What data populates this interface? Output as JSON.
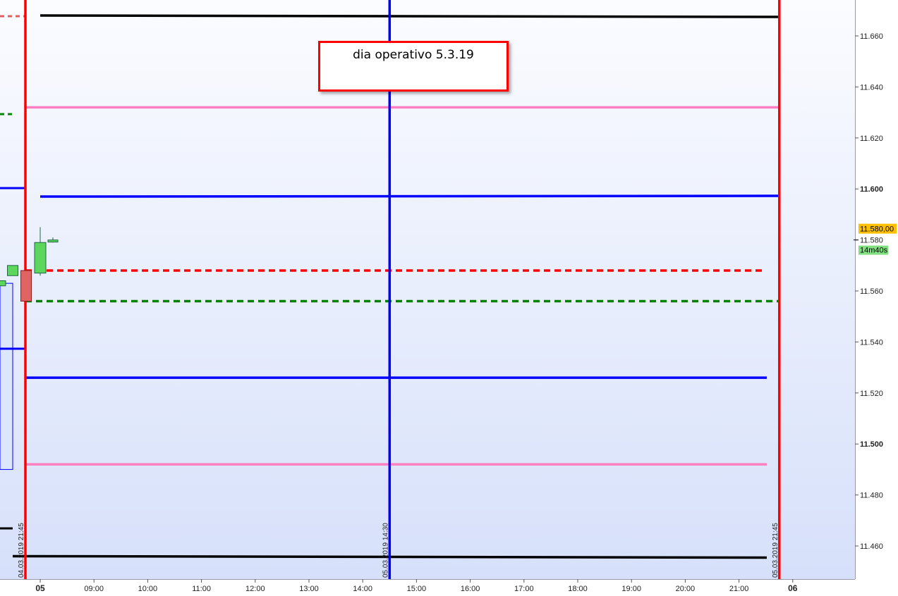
{
  "chart_data": {
    "type": "candlestick",
    "ylim": [
      11.445,
      11.675
    ],
    "y_ticks": [
      "11.660",
      "11.640",
      "11.620",
      "11.600",
      "11.580",
      "11.560",
      "11.540",
      "11.520",
      "11.500",
      "11.480",
      "11.460"
    ],
    "y_tick_values": [
      11.66,
      11.64,
      11.62,
      11.6,
      11.58,
      11.56,
      11.54,
      11.52,
      11.5,
      11.48,
      11.46
    ],
    "bold_ticks": [
      "11.600",
      "11.500"
    ],
    "x_ticks": [
      "05",
      "09:00",
      "10:00",
      "11:00",
      "12:00",
      "13:00",
      "14:00",
      "15:00",
      "16:00",
      "17:00",
      "18:00",
      "19:00",
      "20:00",
      "21:00",
      "06"
    ],
    "x_tick_hours": [
      8,
      9,
      10,
      11,
      12,
      13,
      14,
      15,
      16,
      17,
      18,
      19,
      20,
      21,
      22
    ],
    "current_price": "11.580,00",
    "countdown": "14m40s",
    "annotation": "dia operativo 5.3.19",
    "horizontal_levels": [
      {
        "price": 11.668,
        "color": "#000000",
        "style": "solid"
      },
      {
        "price": 11.632,
        "color": "#ff80c0",
        "style": "solid"
      },
      {
        "price": 11.597,
        "color": "#0000ff",
        "style": "solid"
      },
      {
        "price": 11.568,
        "color": "#ff0000",
        "style": "dashed"
      },
      {
        "price": 11.556,
        "color": "#008000",
        "style": "dashed"
      },
      {
        "price": 11.526,
        "color": "#0000ff",
        "style": "solid"
      },
      {
        "price": 11.492,
        "color": "#ff80c0",
        "style": "solid"
      },
      {
        "price": 11.456,
        "color": "#000000",
        "style": "solid"
      }
    ],
    "vertical_lines": [
      {
        "label": "04.03.2019 21:45",
        "color": "#ff0000"
      },
      {
        "label": "05.03.2019 14:30",
        "color": "#0000ff",
        "hour": 14.5
      },
      {
        "label": "05.03.2019 21:45",
        "color": "#ff0000",
        "hour": 21.75
      }
    ],
    "candles": [
      {
        "o": 11.562,
        "h": 11.564,
        "l": 11.562,
        "c": 11.564,
        "dir": "up"
      },
      {
        "o": 11.566,
        "h": 11.57,
        "l": 11.566,
        "c": 11.57,
        "dir": "up"
      },
      {
        "o": 11.568,
        "h": 11.568,
        "l": 11.556,
        "c": 11.556,
        "dir": "down"
      },
      {
        "o": 11.567,
        "h": 11.585,
        "l": 11.566,
        "c": 11.579,
        "dir": "up"
      },
      {
        "o": 11.58,
        "h": 11.581,
        "l": 11.579,
        "c": 11.58,
        "dir": "up"
      }
    ]
  }
}
